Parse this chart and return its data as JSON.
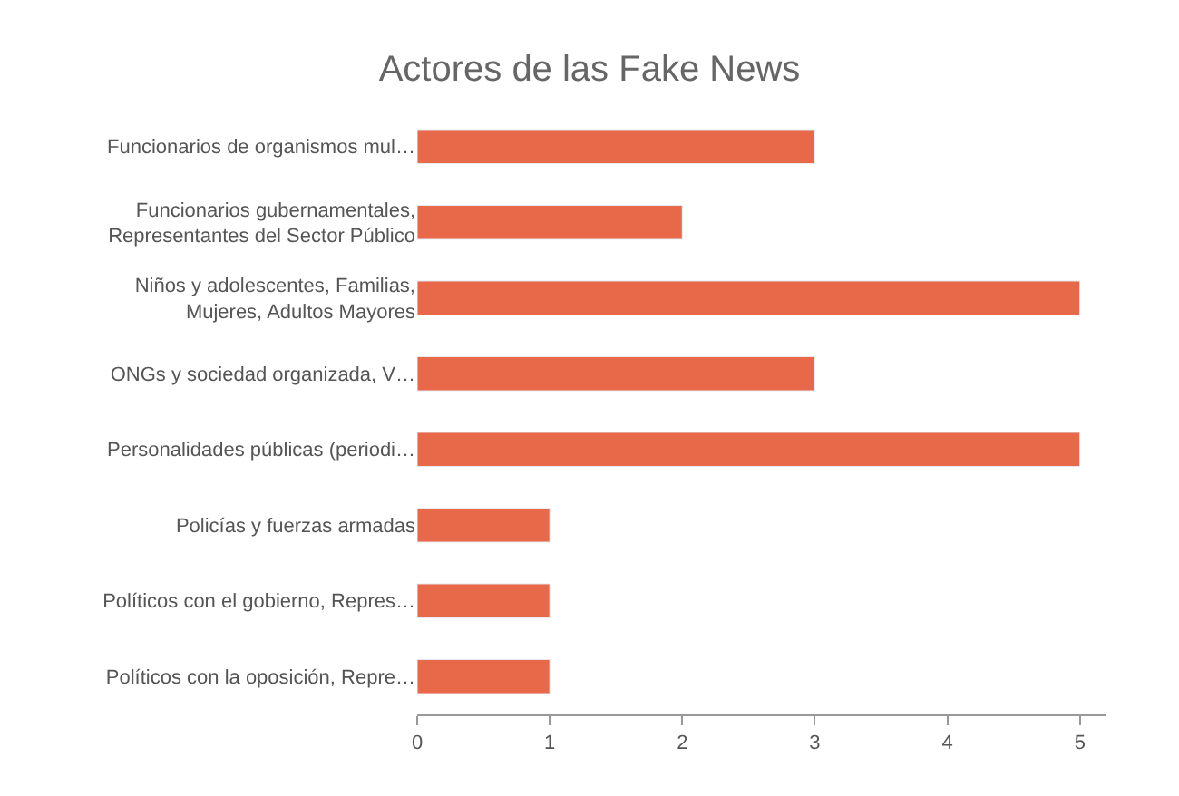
{
  "chart_data": {
    "type": "bar",
    "title": "Actores de las Fake News",
    "orientation": "horizontal",
    "categories": [
      "Funcionarios de organismos mul…",
      "Funcionarios gubernamentales,\nRepresentantes del Sector Público",
      "Niños y adolescentes, Familias,\nMujeres, Adultos Mayores",
      "ONGs y sociedad organizada, V…",
      "Personalidades públicas (periodi…",
      "Policías y fuerzas armadas",
      "Políticos con el gobierno, Repres…",
      "Políticos con la oposición, Repre…"
    ],
    "values": [
      3,
      2,
      5,
      3,
      5,
      1,
      1,
      1
    ],
    "color": "#e8694a",
    "xlim": [
      0,
      5.2
    ],
    "xticks": [
      0,
      1,
      2,
      3,
      4,
      5
    ]
  }
}
